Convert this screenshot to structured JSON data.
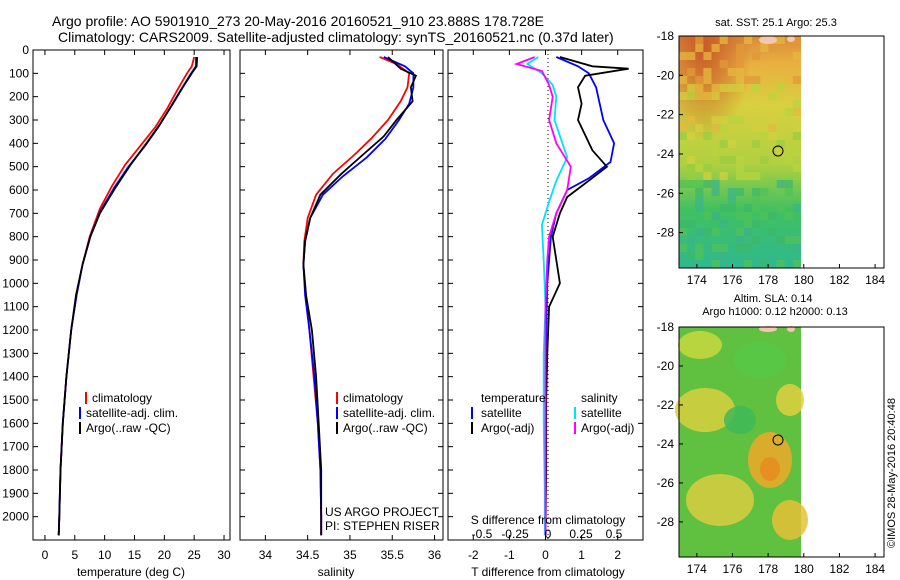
{
  "header": {
    "line1": "Argo profile: AO 5901910_273 20-May-2016 20160521_910 23.888S 178.728E",
    "line2": "Climatology: CARS2009. Satellite-adjusted climatology: synTS_20160521.nc (0.37d later)"
  },
  "colors": {
    "climatology": "#ff0000",
    "satellite": "#0000ff",
    "argo": "#000000",
    "sal_satellite": "#00e0ff",
    "sal_argo": "#ff00ff"
  },
  "credit": {
    "project": "US ARGO PROJECT",
    "pi": "PI: STEPHEN RISER",
    "imos": "©IMOS 28-May-2016 20:40:48"
  },
  "chart_data": [
    {
      "type": "line",
      "panel": "temperature",
      "xlabel": "temperature (deg C)",
      "xlim": [
        -2,
        31
      ],
      "ylim": [
        2100,
        0
      ],
      "y_reversed": true,
      "xticks": [
        0,
        5,
        10,
        15,
        20,
        25,
        30
      ],
      "yticks": [
        0,
        100,
        200,
        300,
        400,
        500,
        600,
        700,
        800,
        900,
        1000,
        1100,
        1200,
        1300,
        1400,
        1500,
        1600,
        1700,
        1800,
        1900,
        2000
      ],
      "legend": [
        "climatology",
        "satellite-adj. clim.",
        "Argo(..raw -QC)"
      ],
      "series": [
        {
          "name": "climatology",
          "color": "#ff0000",
          "points": [
            [
              25,
              30
            ],
            [
              24.6,
              70
            ],
            [
              23.8,
              100
            ],
            [
              22.2,
              170
            ],
            [
              20.5,
              250
            ],
            [
              18.5,
              330
            ],
            [
              16,
              410
            ],
            [
              13.5,
              490
            ],
            [
              11.3,
              580
            ],
            [
              9.2,
              680
            ],
            [
              7.5,
              800
            ],
            [
              6.3,
              920
            ],
            [
              5.3,
              1050
            ],
            [
              4.4,
              1200
            ],
            [
              3.6,
              1400
            ],
            [
              3.0,
              1600
            ],
            [
              2.6,
              1800
            ],
            [
              2.4,
              2000
            ],
            [
              2.3,
              2080
            ]
          ]
        },
        {
          "name": "satellite-adj. clim.",
          "color": "#0000ff",
          "points": [
            [
              25.3,
              30
            ],
            [
              25.3,
              70
            ],
            [
              24.5,
              100
            ],
            [
              22.8,
              170
            ],
            [
              20.9,
              250
            ],
            [
              19,
              330
            ],
            [
              16.8,
              410
            ],
            [
              14,
              500
            ],
            [
              11.6,
              590
            ],
            [
              9.3,
              690
            ],
            [
              7.6,
              800
            ],
            [
              6.3,
              920
            ],
            [
              5.3,
              1050
            ],
            [
              4.4,
              1200
            ],
            [
              3.6,
              1400
            ],
            [
              3.0,
              1600
            ],
            [
              2.6,
              1800
            ],
            [
              2.4,
              2000
            ],
            [
              2.3,
              2080
            ]
          ]
        },
        {
          "name": "Argo(..raw -QC)",
          "color": "#000000",
          "points": [
            [
              25.5,
              30
            ],
            [
              25.4,
              70
            ],
            [
              24.6,
              100
            ],
            [
              23.1,
              160
            ],
            [
              21.2,
              240
            ],
            [
              19.2,
              320
            ],
            [
              17,
              400
            ],
            [
              14.4,
              490
            ],
            [
              11.8,
              590
            ],
            [
              9.2,
              700
            ],
            [
              7.6,
              800
            ],
            [
              6.3,
              920
            ],
            [
              5.2,
              1050
            ],
            [
              4.4,
              1200
            ],
            [
              3.6,
              1400
            ],
            [
              3.0,
              1600
            ],
            [
              2.6,
              1800
            ],
            [
              2.4,
              2000
            ],
            [
              2.3,
              2080
            ]
          ]
        }
      ]
    },
    {
      "type": "line",
      "panel": "salinity",
      "xlabel": "salinity",
      "xlim": [
        33.7,
        36.1
      ],
      "ylim": [
        2100,
        0
      ],
      "y_reversed": true,
      "xticks": [
        34,
        34.5,
        35,
        35.5,
        36
      ],
      "legend": [
        "climatology",
        "satellite-adj. clim.",
        "Argo(..raw -QC)"
      ],
      "series": [
        {
          "name": "climatology",
          "color": "#ff0000",
          "points": [
            [
              35.35,
              30
            ],
            [
              35.55,
              60
            ],
            [
              35.7,
              100
            ],
            [
              35.68,
              160
            ],
            [
              35.6,
              220
            ],
            [
              35.45,
              300
            ],
            [
              35.25,
              380
            ],
            [
              35.05,
              450
            ],
            [
              34.8,
              530
            ],
            [
              34.6,
              620
            ],
            [
              34.5,
              720
            ],
            [
              34.46,
              820
            ],
            [
              34.45,
              920
            ],
            [
              34.48,
              1050
            ],
            [
              34.52,
              1200
            ],
            [
              34.57,
              1400
            ],
            [
              34.62,
              1600
            ],
            [
              34.65,
              1800
            ],
            [
              34.66,
              2000
            ],
            [
              34.66,
              2080
            ]
          ]
        },
        {
          "name": "satellite-adj. clim.",
          "color": "#0000ff",
          "points": [
            [
              35.4,
              30
            ],
            [
              35.65,
              70
            ],
            [
              35.75,
              100
            ],
            [
              35.75,
              160
            ],
            [
              35.7,
              230
            ],
            [
              35.58,
              300
            ],
            [
              35.42,
              380
            ],
            [
              35.2,
              460
            ],
            [
              34.92,
              540
            ],
            [
              34.68,
              620
            ],
            [
              34.53,
              720
            ],
            [
              34.47,
              820
            ],
            [
              34.45,
              920
            ],
            [
              34.47,
              1050
            ],
            [
              34.52,
              1200
            ],
            [
              34.58,
              1400
            ],
            [
              34.62,
              1600
            ],
            [
              34.65,
              1800
            ],
            [
              34.66,
              2000
            ],
            [
              34.66,
              2080
            ]
          ]
        },
        {
          "name": "Argo(..raw -QC)",
          "color": "#000000",
          "points": [
            [
              35.45,
              30
            ],
            [
              35.6,
              80
            ],
            [
              35.78,
              110
            ],
            [
              35.72,
              160
            ],
            [
              35.74,
              220
            ],
            [
              35.55,
              300
            ],
            [
              35.4,
              370
            ],
            [
              35.15,
              450
            ],
            [
              34.9,
              530
            ],
            [
              34.65,
              620
            ],
            [
              34.53,
              720
            ],
            [
              34.47,
              820
            ],
            [
              34.45,
              920
            ],
            [
              34.48,
              1050
            ],
            [
              34.55,
              1200
            ],
            [
              34.6,
              1400
            ],
            [
              34.63,
              1600
            ],
            [
              34.66,
              1800
            ],
            [
              34.66,
              2000
            ],
            [
              34.66,
              2080
            ]
          ]
        }
      ]
    },
    {
      "type": "line",
      "panel": "differences",
      "xlabel": "T difference from climatology",
      "xlabel_top": "S difference from climatology",
      "xlim": [
        -2.7,
        2.7
      ],
      "ylim": [
        2100,
        0
      ],
      "y_reversed": true,
      "xticks": [
        -2,
        -1,
        0,
        1,
        2
      ],
      "xticks_s": [
        "-0.5",
        "-0.25",
        "0",
        "0.25",
        "0.5"
      ],
      "legend_headers": [
        "temperature",
        "salinity"
      ],
      "legend": [
        "satellite",
        "Argo(-adj)",
        "satellite",
        "Argo(-adj)"
      ],
      "series": [
        {
          "name": "satellite",
          "group": "temperature",
          "color": "#0000ff",
          "points": [
            [
              0.3,
              30
            ],
            [
              0.9,
              70
            ],
            [
              1.2,
              100
            ],
            [
              1.4,
              160
            ],
            [
              1.5,
              230
            ],
            [
              1.6,
              300
            ],
            [
              1.9,
              400
            ],
            [
              1.8,
              480
            ],
            [
              1.2,
              550
            ],
            [
              0.6,
              600
            ],
            [
              0.3,
              700
            ],
            [
              0.15,
              800
            ],
            [
              0.1,
              900
            ],
            [
              0.05,
              1000
            ],
            [
              0.02,
              1200
            ],
            [
              0.01,
              1400
            ],
            [
              0.0,
              1800
            ],
            [
              0.0,
              2080
            ]
          ]
        },
        {
          "name": "Argo(-adj)",
          "group": "temperature",
          "color": "#000000",
          "points": [
            [
              0.4,
              30
            ],
            [
              1.3,
              70
            ],
            [
              2.3,
              80
            ],
            [
              1.1,
              110
            ],
            [
              0.9,
              160
            ],
            [
              1.0,
              230
            ],
            [
              0.9,
              300
            ],
            [
              1.3,
              430
            ],
            [
              1.7,
              500
            ],
            [
              1.2,
              560
            ],
            [
              0.6,
              630
            ],
            [
              0.4,
              700
            ],
            [
              0.2,
              800
            ],
            [
              0.3,
              900
            ],
            [
              0.4,
              1000
            ],
            [
              0.1,
              1100
            ],
            [
              0.05,
              1300
            ],
            [
              0.02,
              1500
            ],
            [
              0.02,
              1800
            ],
            [
              0.0,
              2080
            ]
          ]
        },
        {
          "name": "satellite",
          "group": "salinity",
          "color": "#00e0ff",
          "points": [
            [
              -0.2,
              30
            ],
            [
              -0.5,
              60
            ],
            [
              -0.1,
              100
            ],
            [
              0.2,
              150
            ],
            [
              0.3,
              200
            ],
            [
              0.25,
              300
            ],
            [
              0.6,
              460
            ],
            [
              0.3,
              560
            ],
            [
              0.1,
              650
            ],
            [
              -0.1,
              750
            ],
            [
              -0.05,
              900
            ],
            [
              0.0,
              1100
            ],
            [
              -0.05,
              1300
            ],
            [
              -0.05,
              1600
            ],
            [
              -0.02,
              1900
            ],
            [
              -0.02,
              2080
            ]
          ]
        },
        {
          "name": "Argo(-adj)",
          "group": "salinity",
          "color": "#ff00ff",
          "points": [
            [
              -0.3,
              30
            ],
            [
              -0.8,
              60
            ],
            [
              -0.1,
              90
            ],
            [
              0.1,
              150
            ],
            [
              0.2,
              200
            ],
            [
              0.1,
              300
            ],
            [
              0.3,
              400
            ],
            [
              0.7,
              500
            ],
            [
              0.6,
              600
            ],
            [
              0.3,
              700
            ],
            [
              0.1,
              800
            ],
            [
              0.05,
              900
            ],
            [
              0.0,
              1100
            ],
            [
              0.0,
              1400
            ],
            [
              0.0,
              1800
            ],
            [
              0.0,
              2080
            ]
          ]
        }
      ]
    },
    {
      "type": "heatmap",
      "panel": "sst_map",
      "title": "sat. SST: 25.1 Argo: 25.3",
      "xlim": [
        173,
        184.5
      ],
      "ylim": [
        -29.8,
        -18
      ],
      "xticks": [
        174,
        176,
        178,
        180,
        182,
        184
      ],
      "yticks": [
        -18,
        -20,
        -22,
        -24,
        -26,
        -28
      ],
      "float_position": [
        178.728,
        -23.888
      ],
      "data_edge_lon": 180
    },
    {
      "type": "heatmap",
      "panel": "sla_map",
      "title": "Altim. SLA: 0.14",
      "subtitle": "Argo h1000: 0.12 h2000: 0.13",
      "xlim": [
        173,
        184.5
      ],
      "ylim": [
        -29.8,
        -18
      ],
      "xticks": [
        174,
        176,
        178,
        180,
        182,
        184
      ],
      "yticks": [
        -18,
        -20,
        -22,
        -24,
        -26,
        -28
      ],
      "float_position": [
        178.728,
        -23.888
      ],
      "data_edge_lon": 180
    }
  ]
}
